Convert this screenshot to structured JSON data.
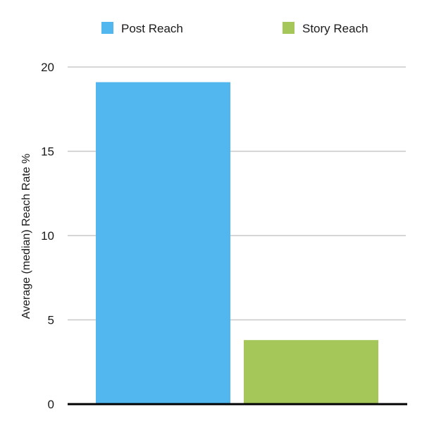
{
  "chart_data": {
    "type": "bar",
    "ylabel": "Average (median) Reach Rate %",
    "xlabel": "",
    "ylim": [
      0,
      20
    ],
    "yticks": [
      0,
      5,
      10,
      15,
      20
    ],
    "grid": true,
    "legend_position": "top",
    "series": [
      {
        "name": "Post Reach",
        "value": 19.1,
        "color": "#52b7ef"
      },
      {
        "name": "Story Reach",
        "value": 3.8,
        "color": "#a5c75a"
      }
    ]
  }
}
